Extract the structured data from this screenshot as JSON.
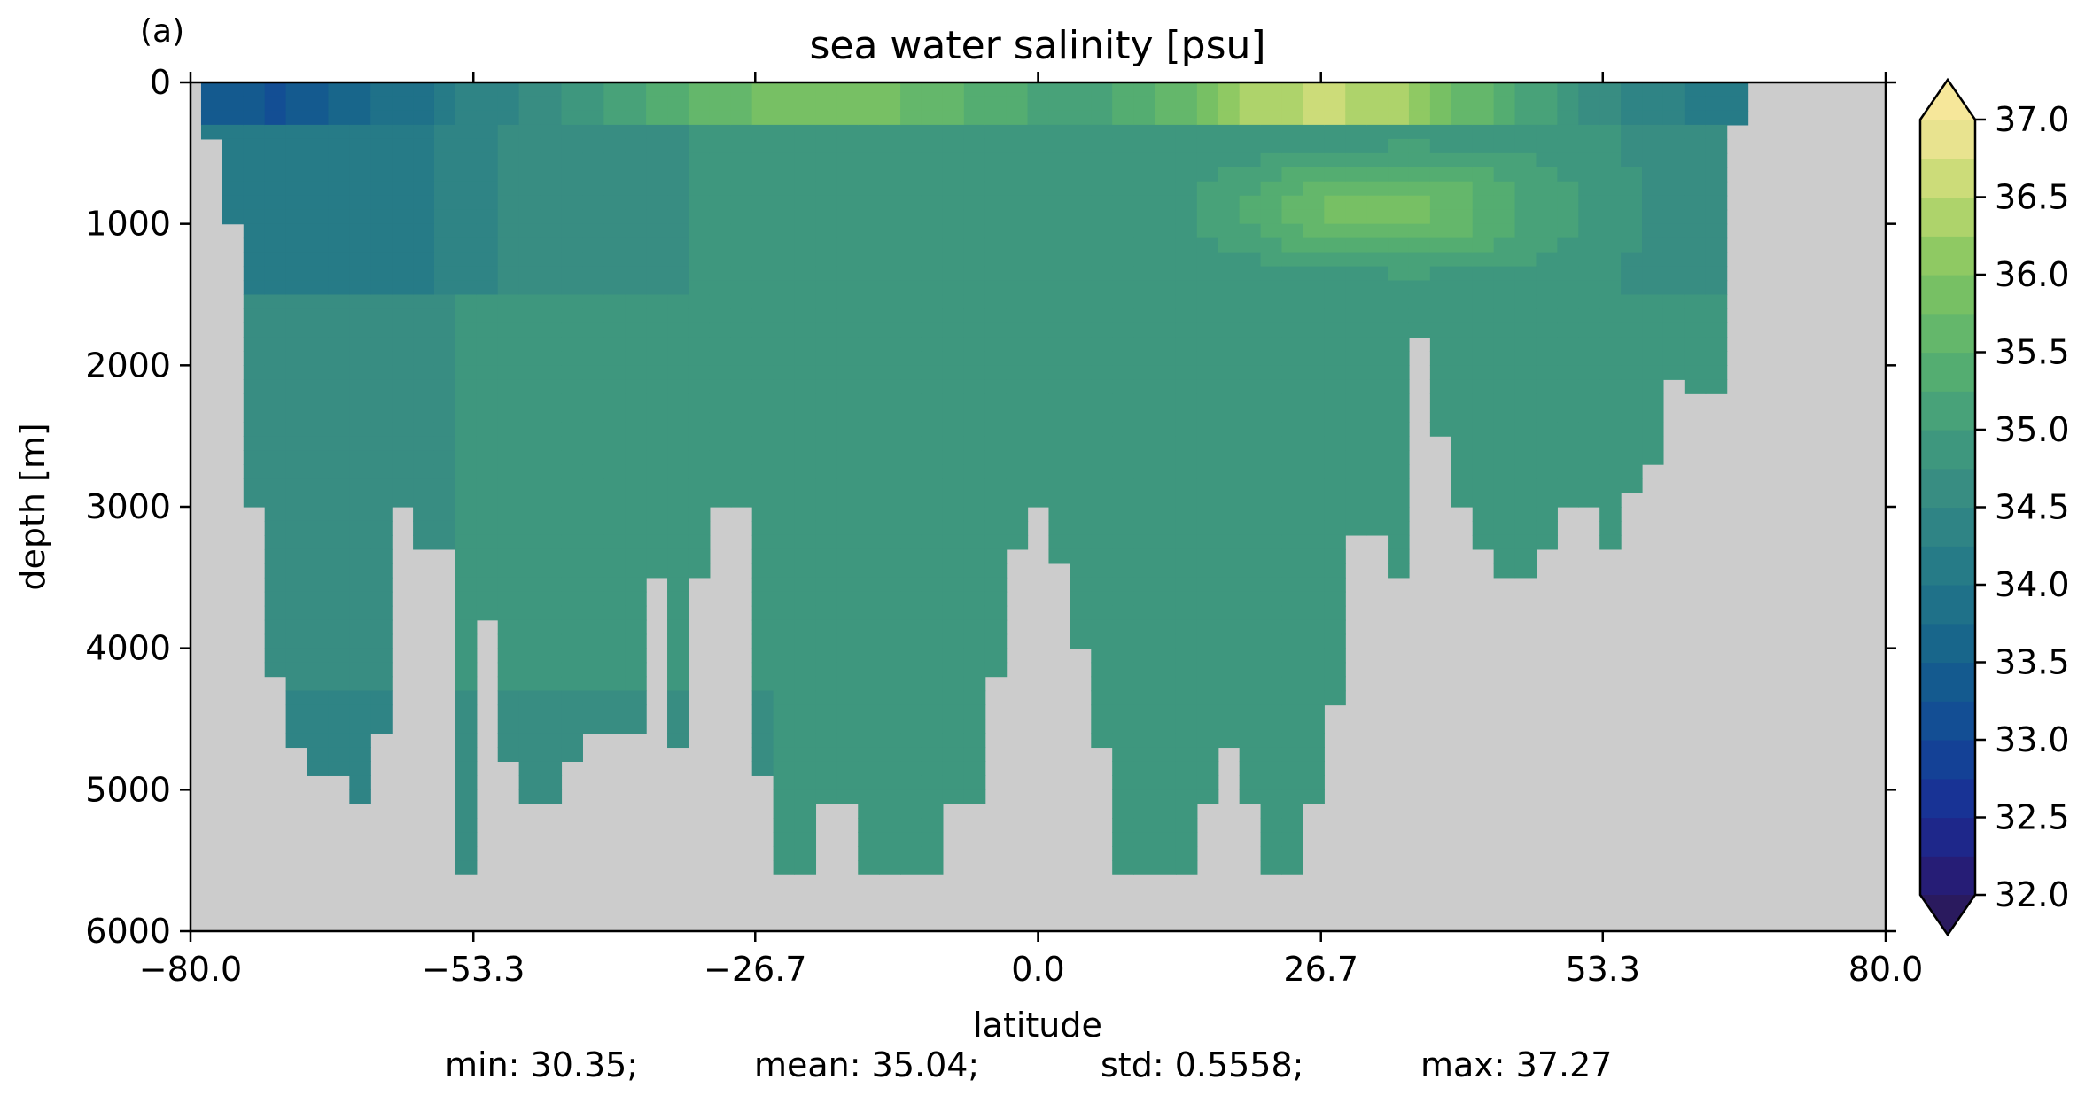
{
  "panel_label": "(a)",
  "chart_data": {
    "type": "heatmap",
    "title": "sea water salinity [psu]",
    "xlabel": "latitude",
    "ylabel": "depth [m]",
    "xlim": [
      -80.0,
      80.0
    ],
    "ylim": [
      6000,
      0
    ],
    "xticks": [
      "−80.0",
      "−53.3",
      "−26.7",
      "0.0",
      "26.7",
      "53.3",
      "80.0"
    ],
    "xtick_values": [
      -80.0,
      -53.3,
      -26.7,
      0.0,
      26.7,
      53.3,
      80.0
    ],
    "yticks": [
      "0",
      "1000",
      "2000",
      "3000",
      "4000",
      "5000",
      "6000"
    ],
    "ytick_values": [
      0,
      1000,
      2000,
      3000,
      4000,
      5000,
      6000
    ],
    "colorbar": {
      "min": 32.0,
      "max": 37.0,
      "extend": "both",
      "tick_labels": [
        "32.0",
        "32.5",
        "33.0",
        "33.5",
        "34.0",
        "34.5",
        "35.0",
        "35.5",
        "36.0",
        "36.5",
        "37.0"
      ],
      "tick_values": [
        32.0,
        32.5,
        33.0,
        33.5,
        34.0,
        34.5,
        35.0,
        35.5,
        36.0,
        36.5,
        37.0
      ],
      "levels": 20,
      "colormap": "haline",
      "under_color": "#2a1a5e",
      "over_color": "#f6e79a"
    },
    "land_color": "#cccccc",
    "bathymetry": {
      "latitude": [
        -78,
        -76,
        -74,
        -72,
        -70,
        -68,
        -66,
        -64,
        -62,
        -60,
        -58,
        -56,
        -54,
        -52,
        -50,
        -48,
        -46,
        -44,
        -42,
        -40,
        -38,
        -36,
        -34,
        -32,
        -30,
        -28,
        -26,
        -24,
        -22,
        -20,
        -18,
        -16,
        -14,
        -12,
        -10,
        -8,
        -6,
        -4,
        -2,
        0,
        2,
        4,
        6,
        8,
        10,
        12,
        14,
        16,
        18,
        20,
        22,
        24,
        26,
        28,
        30,
        32,
        34,
        36,
        38,
        40,
        42,
        44,
        46,
        48,
        50,
        52,
        54,
        56,
        58,
        60,
        62,
        64,
        66,
        68
      ],
      "max_depth": [
        400,
        1000,
        3000,
        4200,
        4700,
        4900,
        4900,
        5100,
        4600,
        3000,
        3300,
        3300,
        5600,
        3800,
        4800,
        5100,
        5100,
        4800,
        4600,
        4600,
        4600,
        3500,
        4700,
        3500,
        3000,
        3000,
        4900,
        5600,
        5600,
        5100,
        5100,
        5600,
        5600,
        5600,
        5600,
        5100,
        5100,
        4200,
        3300,
        3000,
        3400,
        4000,
        4700,
        5600,
        5600,
        5600,
        5600,
        5100,
        4700,
        5100,
        5600,
        5600,
        5100,
        4400,
        3200,
        3200,
        3500,
        1800,
        2500,
        3000,
        3300,
        3500,
        3500,
        3300,
        3000,
        3000,
        3300,
        2900,
        2700,
        2100,
        2200,
        2200,
        300,
        0
      ]
    },
    "salinity_features": [
      {
        "region": "surface, 70S-40S",
        "depth": [
          0,
          200
        ],
        "value": 33.6
      },
      {
        "region": "intermediate, 60S-30S",
        "depth": [
          200,
          1200
        ],
        "value": 34.3
      },
      {
        "region": "deep, 75S-55S",
        "depth": [
          1200,
          5600
        ],
        "value": 34.6
      },
      {
        "region": "deep, 50S-30N",
        "depth": [
          1500,
          4200
        ],
        "value": 34.9
      },
      {
        "region": "bottom, 30S-40N",
        "depth": [
          4200,
          5600
        ],
        "value": 34.75
      },
      {
        "region": "surface, 25S-15S",
        "depth": [
          0,
          150
        ],
        "value": 36.4
      },
      {
        "region": "surface, 22N-30N",
        "depth": [
          0,
          200
        ],
        "value": 37.0
      },
      {
        "region": "intermediate, 20N-42N",
        "depth": [
          600,
          1100
        ],
        "value": 35.8
      },
      {
        "region": "deep, 40N-65N",
        "depth": [
          1000,
          3500
        ],
        "value": 34.9
      }
    ],
    "stats": {
      "min": 30.35,
      "mean": 35.04,
      "std": 0.5558,
      "max": 37.27
    }
  },
  "stats_text": {
    "min": "min: 30.35;",
    "mean": "mean: 35.04;",
    "std": "std: 0.5558;",
    "max": "max: 37.27"
  }
}
